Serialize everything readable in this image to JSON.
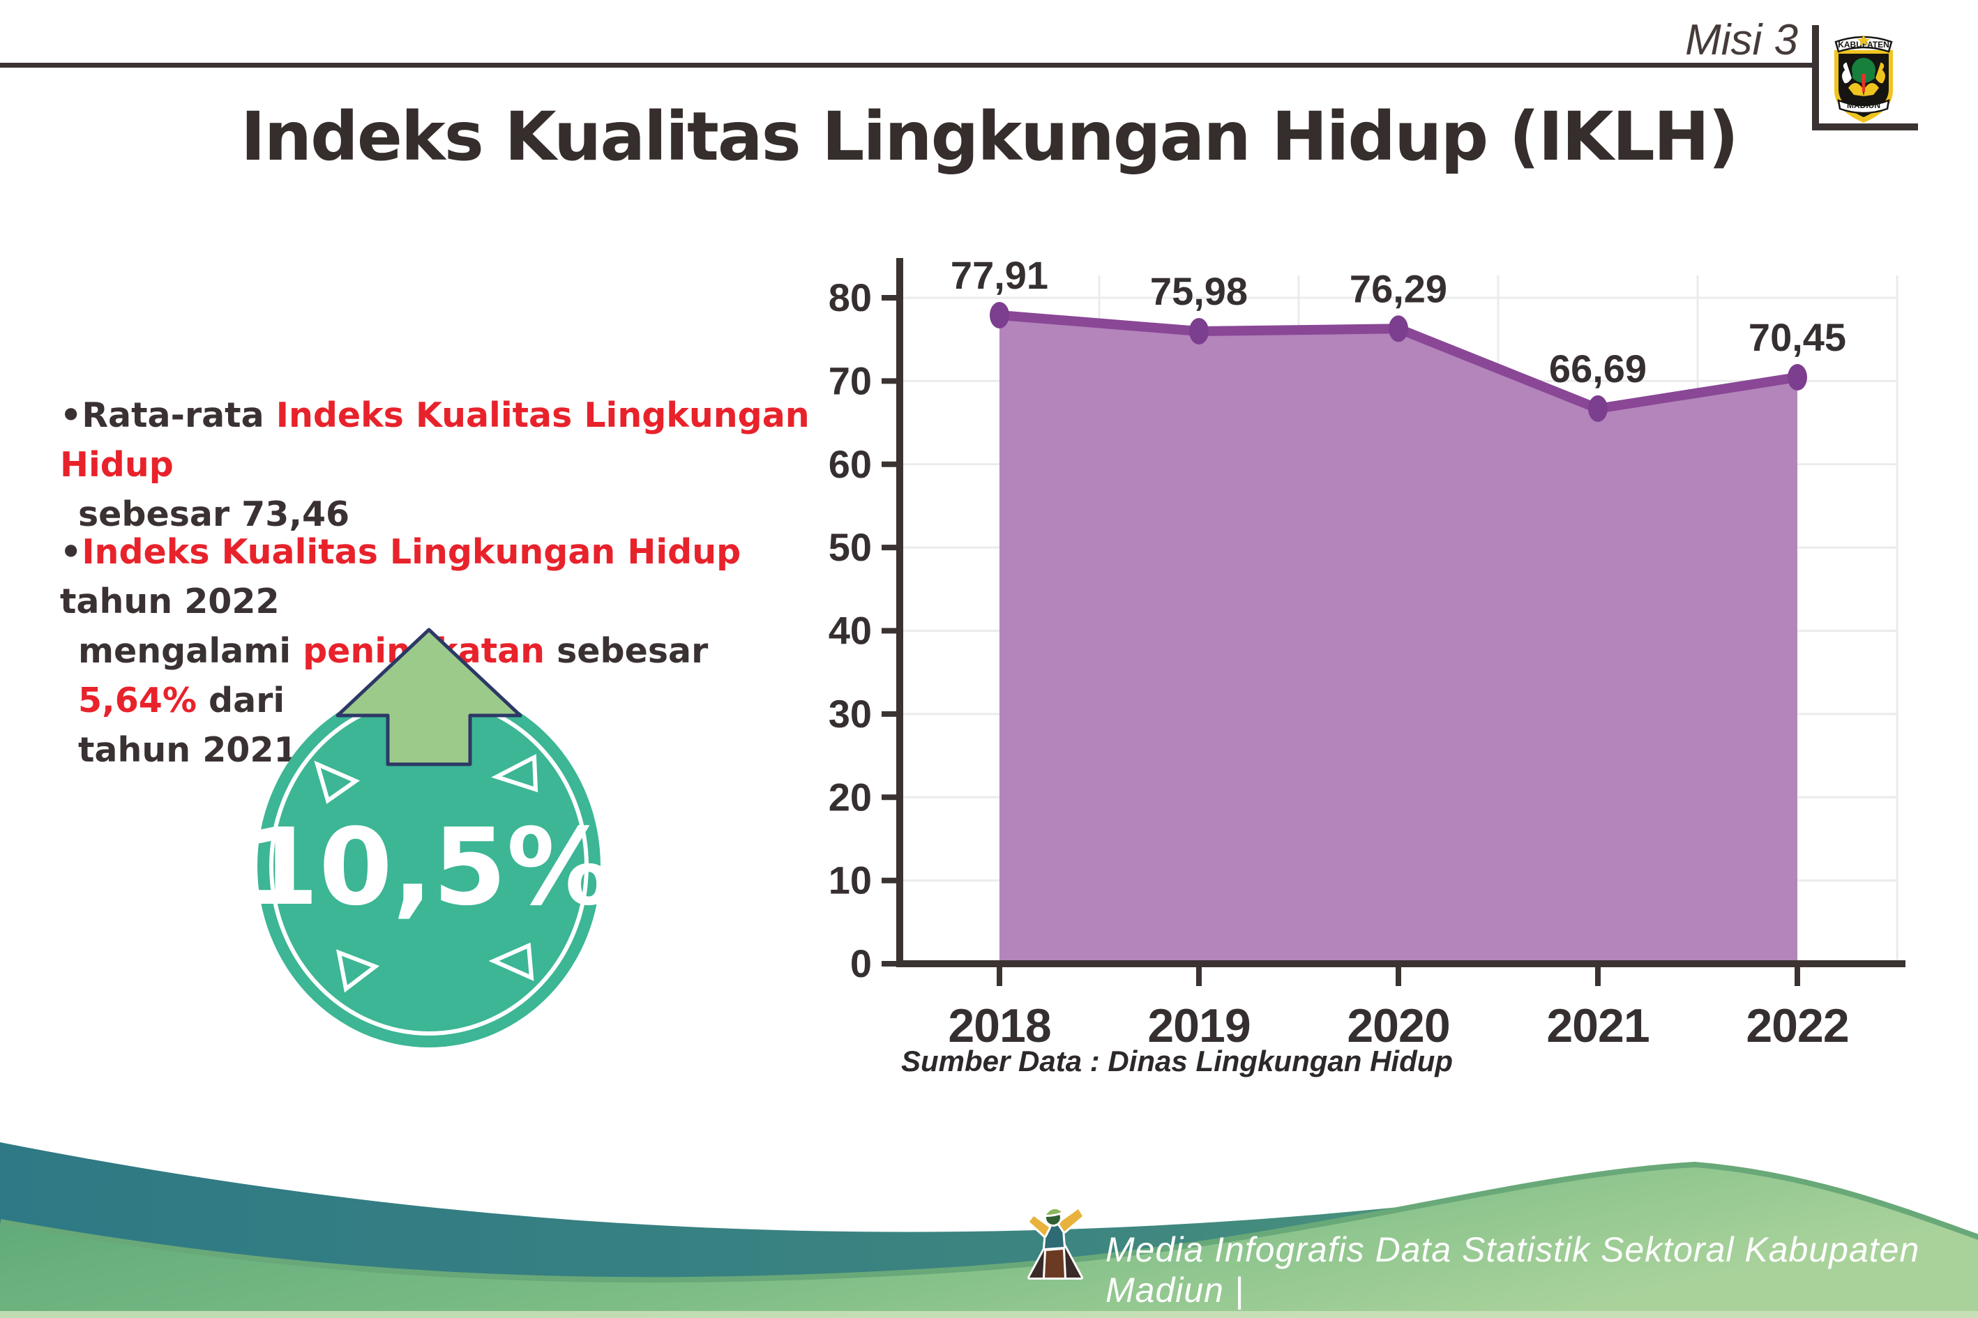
{
  "header": {
    "misi_label": "Misi 3",
    "title": "Indeks Kualitas Lingkungan Hidup (IKLH)",
    "logo_top": "KABUPATEN",
    "logo_bottom": "MADIUN"
  },
  "bullets": {
    "item1": {
      "bullet": "•",
      "seg1": "Rata-rata ",
      "seg2_red": "Indeks Kualitas Lingkungan Hidup",
      "line2": "sebesar 73,46"
    },
    "item2": {
      "bullet": "•",
      "seg1_red": "Indeks Kualitas Lingkungan Hidup",
      "seg2": " tahun 2022",
      "line2a": "mengalami ",
      "line2b_red": "peningkatan",
      "line2c": " sebesar ",
      "line2d_red": "5,64%",
      "line2e": " dari",
      "line3": "tahun 2021"
    }
  },
  "badge": {
    "value": "10,5%",
    "circle_color": "#3cb695",
    "arrow_color": "#9cca8b",
    "arrow_outline": "#2c3966"
  },
  "chart_data": {
    "type": "area",
    "title": "",
    "categories": [
      "2018",
      "2019",
      "2020",
      "2021",
      "2022"
    ],
    "series": [
      {
        "name": "IKLH",
        "values": [
          77.91,
          75.98,
          76.29,
          66.69,
          70.45
        ]
      }
    ],
    "value_labels": [
      "77,91",
      "75,98",
      "76,29",
      "66,69",
      "70,45"
    ],
    "y_ticks": [
      0,
      10,
      20,
      30,
      40,
      50,
      60,
      70,
      80
    ],
    "ylim": [
      0,
      85
    ],
    "grid": true,
    "legend": "none",
    "source_note": "Sumber Data : Dinas Lingkungan Hidup",
    "colors": {
      "area_fill": "#b385bb",
      "line": "#8a4796",
      "marker": "#7c3e8e",
      "axis": "#3b3331",
      "grid": "#ebebeb",
      "label": "#362f30"
    }
  },
  "footer": {
    "text": "Media Infografis Data Statistik Sektoral Kabupaten Madiun |"
  }
}
